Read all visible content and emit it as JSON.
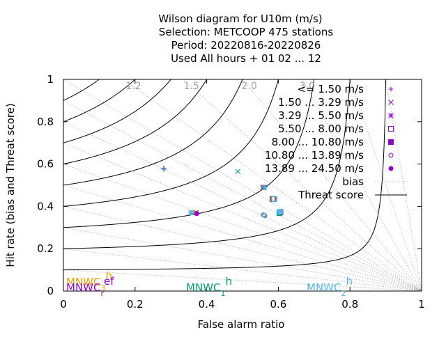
{
  "chart_data": {
    "type": "scatter",
    "title_lines": [
      "Wilson diagram  for U10m (m/s)",
      "Selection: METCOOP    475 stations",
      "Period: 20220816-20220826",
      "Used  All hours  + 01 02 ... 12"
    ],
    "xlabel": "False alarm ratio",
    "ylabel": "Hit rate (bias and Threat score)",
    "xlim": [
      0,
      1
    ],
    "ylim": [
      0,
      1
    ],
    "xticks": [
      "0",
      "0.2",
      "0.4",
      "0.6",
      "0.8",
      "1"
    ],
    "yticks": [
      "0",
      "0.2",
      "0.4",
      "0.6",
      "0.8",
      "1"
    ],
    "bias_labels": [
      "1.2",
      "1.5",
      "2.0",
      "3.0"
    ],
    "threat_score_levels": [
      0.1,
      0.2,
      0.3,
      0.4,
      0.5,
      0.6,
      0.7,
      0.8,
      0.9
    ],
    "bias_levels": [
      0.1,
      0.2,
      0.3,
      0.4,
      0.5,
      0.6,
      0.7,
      0.8,
      0.9,
      1.0,
      1.2,
      1.5,
      2.0,
      3.0,
      5.0,
      10.0
    ],
    "legend_position": "top-right",
    "legend": [
      {
        "label": "<= 1.50 m/s",
        "marker": "plus",
        "color": "#9400d3"
      },
      {
        "label": "1.50 ... 3.29 m/s",
        "marker": "cross",
        "color": "#9400d3"
      },
      {
        "label": "3.29 ... 5.50 m/s",
        "marker": "star",
        "color": "#9400d3"
      },
      {
        "label": "5.50 ... 8.00 m/s",
        "marker": "box",
        "color": "#9400d3"
      },
      {
        "label": "8.00 ... 10.80 m/s",
        "marker": "boxfill",
        "color": "#9400d3"
      },
      {
        "label": "10.80 ... 13.89 m/s",
        "marker": "circle",
        "color": "#9400d3"
      },
      {
        "label": "13.89 ... 24.50 m/s",
        "marker": "circlefill",
        "color": "#9400d3"
      },
      {
        "label": "bias",
        "marker": "dotted-line",
        "color": "#a0a0a0"
      },
      {
        "label": "Threat score",
        "marker": "solid-line",
        "color": "#000000"
      }
    ],
    "models": [
      {
        "name": "MNWC",
        "sub": "3",
        "suffix": "h",
        "color": "#e69f00"
      },
      {
        "name": "MNWC",
        "sub": "r",
        "suffix": "ef",
        "color": "#9400d3"
      },
      {
        "name": "MNWC",
        "sub": "1",
        "suffix": "h",
        "color": "#009e73"
      },
      {
        "name": "MNWC",
        "sub": "2",
        "suffix": "h",
        "color": "#56b4e9"
      }
    ],
    "points": [
      {
        "class": 1,
        "marker": "plus",
        "color": "#e69f00",
        "x": 0.28,
        "y": 0.58
      },
      {
        "class": 1,
        "marker": "plus",
        "color": "#9400d3",
        "x": 0.28,
        "y": 0.58
      },
      {
        "class": 1,
        "marker": "plus",
        "color": "#009e73",
        "x": 0.28,
        "y": 0.575
      },
      {
        "class": 1,
        "marker": "plus",
        "color": "#56b4e9",
        "x": 0.282,
        "y": 0.575
      },
      {
        "class": 2,
        "marker": "cross",
        "color": "#009e73",
        "x": 0.487,
        "y": 0.565
      },
      {
        "class": 2,
        "marker": "cross",
        "color": "#e69f00",
        "x": 0.36,
        "y": 0.37
      },
      {
        "class": 2,
        "marker": "cross",
        "color": "#9400d3",
        "x": 0.37,
        "y": 0.37
      },
      {
        "class": 2,
        "marker": "cross",
        "color": "#56b4e9",
        "x": 0.355,
        "y": 0.372
      },
      {
        "class": 3,
        "marker": "star",
        "color": "#e69f00",
        "x": 0.556,
        "y": 0.49
      },
      {
        "class": 3,
        "marker": "star",
        "color": "#9400d3",
        "x": 0.558,
        "y": 0.49
      },
      {
        "class": 3,
        "marker": "star",
        "color": "#009e73",
        "x": 0.56,
        "y": 0.488
      },
      {
        "class": 3,
        "marker": "star",
        "color": "#56b4e9",
        "x": 0.562,
        "y": 0.49
      },
      {
        "class": 4,
        "marker": "box",
        "color": "#e69f00",
        "x": 0.583,
        "y": 0.435
      },
      {
        "class": 4,
        "marker": "box",
        "color": "#9400d3",
        "x": 0.585,
        "y": 0.435
      },
      {
        "class": 4,
        "marker": "box",
        "color": "#009e73",
        "x": 0.587,
        "y": 0.434
      },
      {
        "class": 4,
        "marker": "box",
        "color": "#56b4e9",
        "x": 0.589,
        "y": 0.435
      },
      {
        "class": 5,
        "marker": "boxfill",
        "color": "#e69f00",
        "x": 0.604,
        "y": 0.37
      },
      {
        "class": 5,
        "marker": "boxfill",
        "color": "#9400d3",
        "x": 0.606,
        "y": 0.372
      },
      {
        "class": 5,
        "marker": "boxfill",
        "color": "#009e73",
        "x": 0.603,
        "y": 0.368
      },
      {
        "class": 5,
        "marker": "boxfill",
        "color": "#56b4e9",
        "x": 0.605,
        "y": 0.375
      },
      {
        "class": 6,
        "marker": "circle",
        "color": "#e69f00",
        "x": 0.56,
        "y": 0.358
      },
      {
        "class": 6,
        "marker": "circle",
        "color": "#9400d3",
        "x": 0.562,
        "y": 0.356
      },
      {
        "class": 6,
        "marker": "circle",
        "color": "#009e73",
        "x": 0.558,
        "y": 0.36
      },
      {
        "class": 6,
        "marker": "circle",
        "color": "#56b4e9",
        "x": 0.561,
        "y": 0.357
      },
      {
        "class": 7,
        "marker": "circlefill",
        "color": "#e69f00",
        "x": 0.37,
        "y": 0.368
      },
      {
        "class": 7,
        "marker": "circlefill",
        "color": "#9400d3",
        "x": 0.372,
        "y": 0.366
      },
      {
        "class": 7,
        "marker": "circlefill",
        "color": "#56b4e9",
        "x": 0.357,
        "y": 0.37
      }
    ]
  }
}
